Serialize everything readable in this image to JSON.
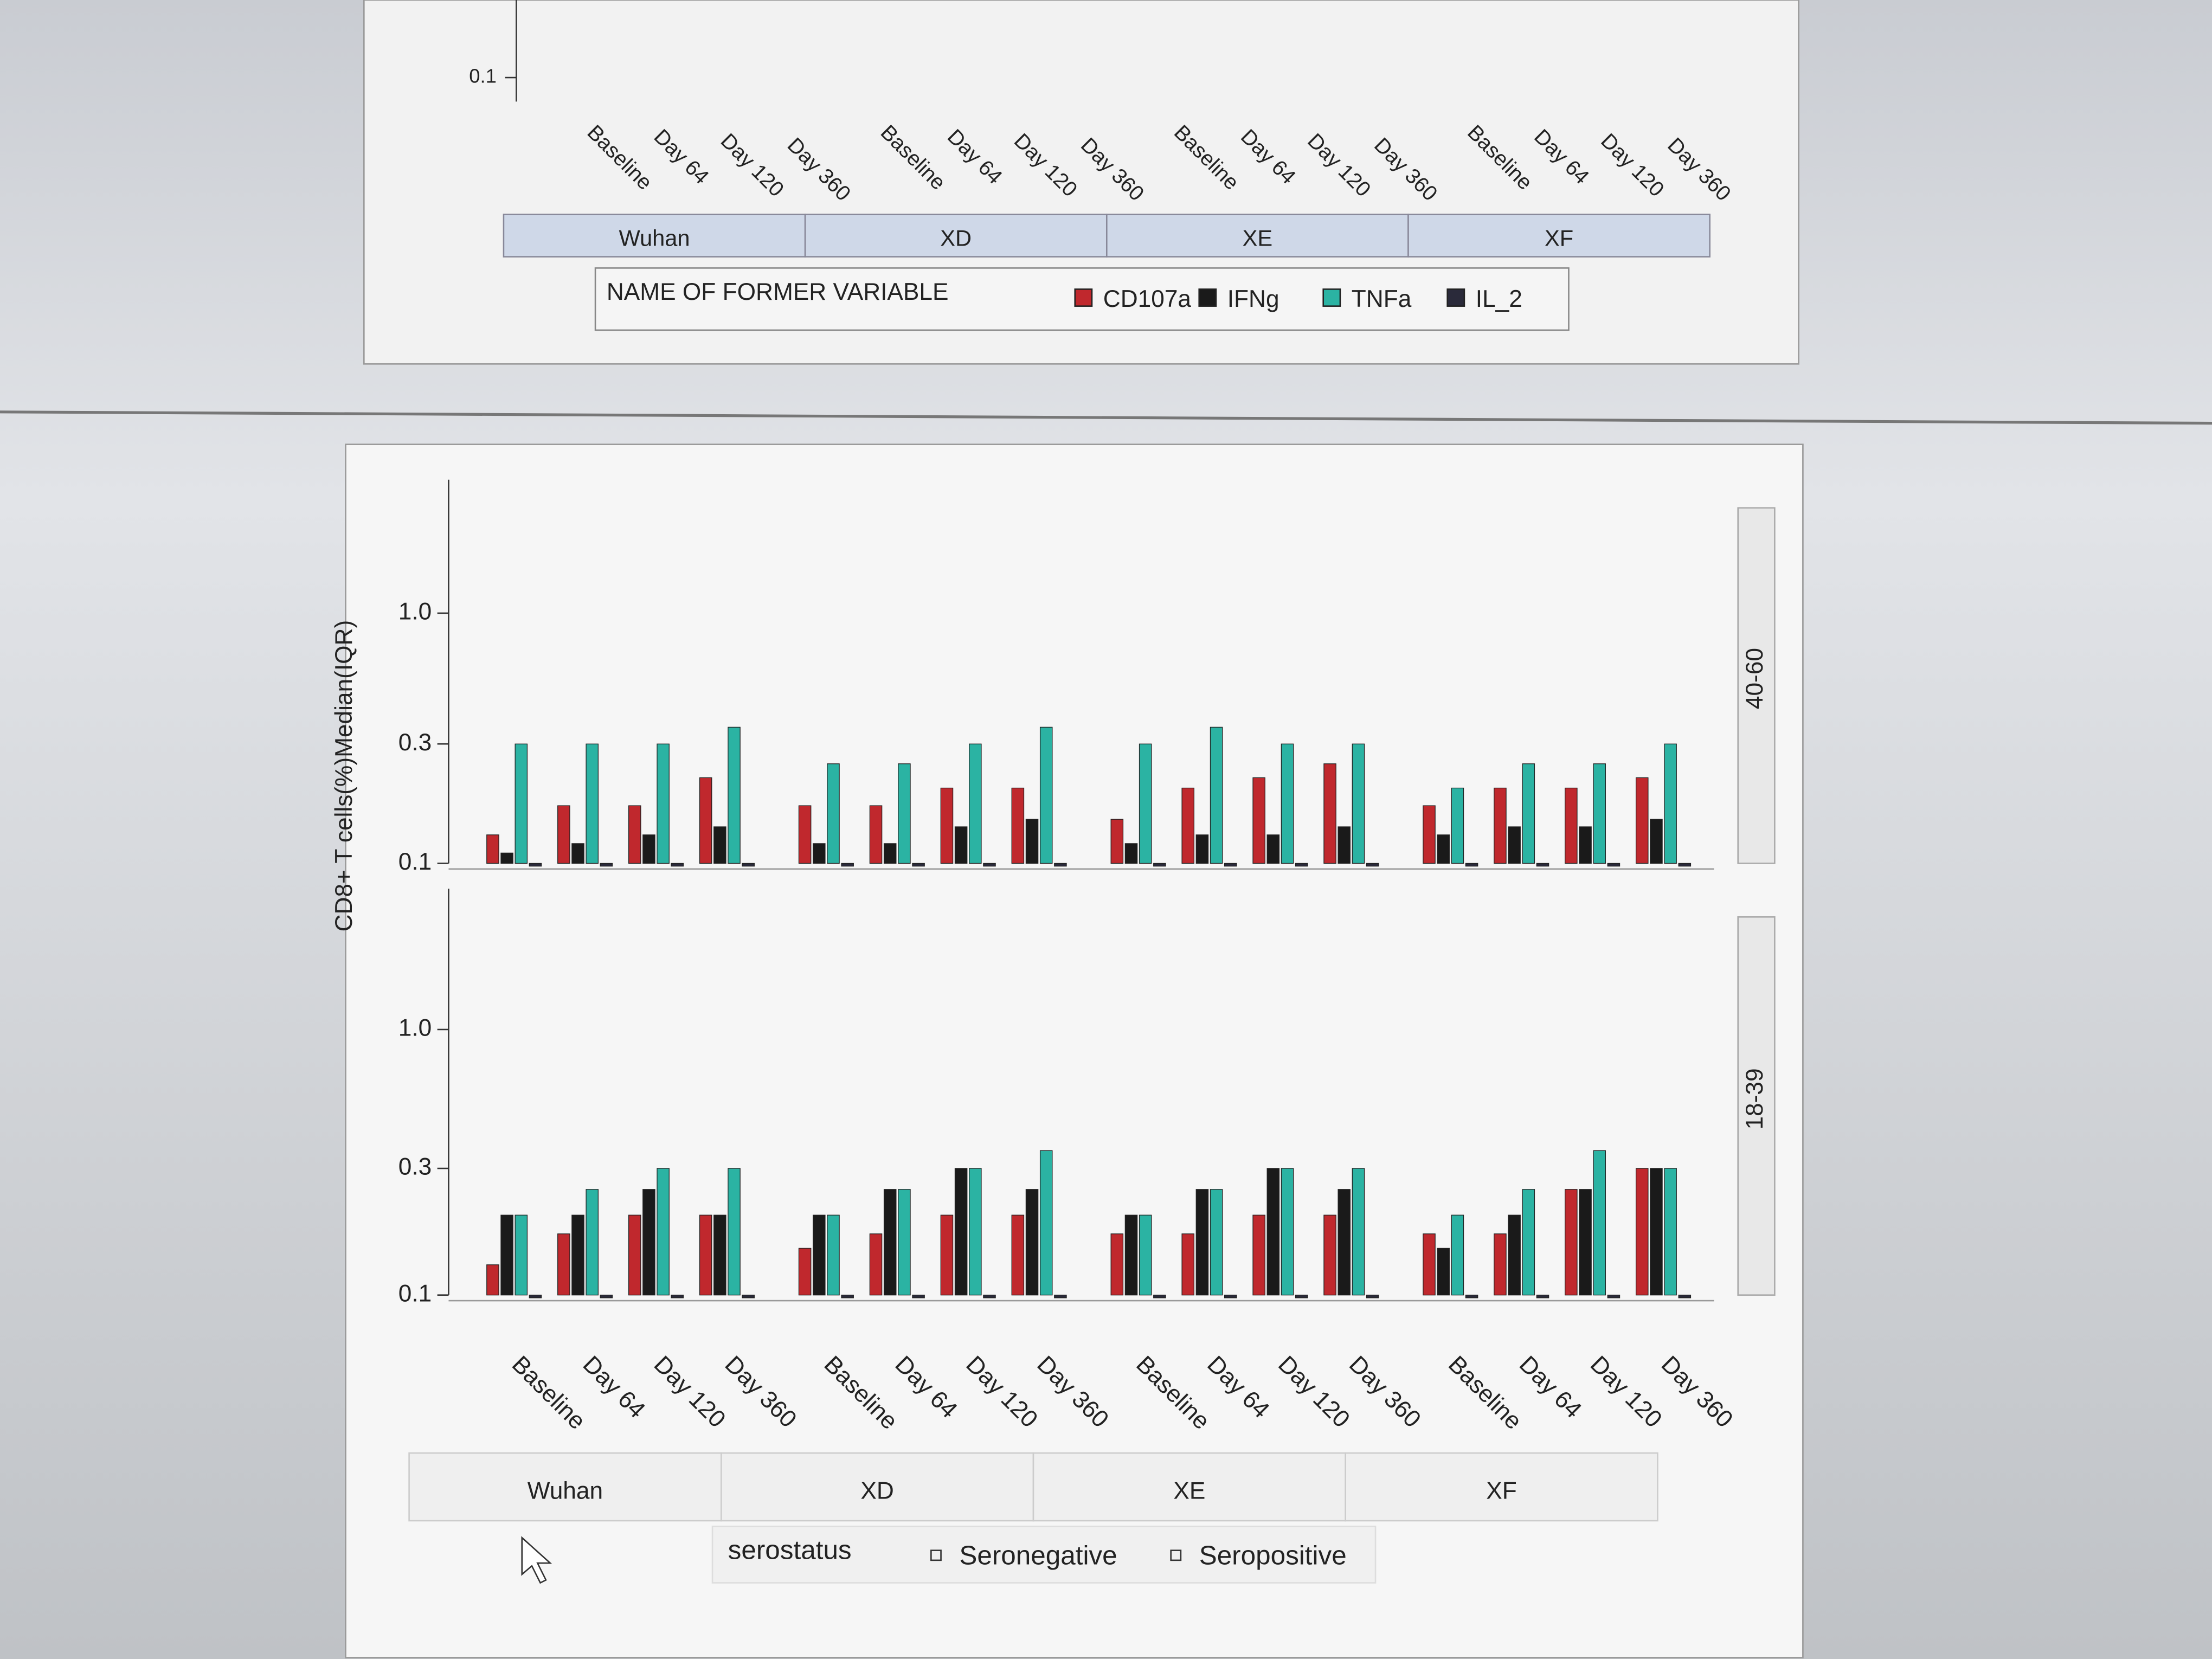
{
  "chart_data": {
    "type": "box",
    "y_label": "CD8+ T cells(%)Median(IQR)",
    "log_y": true,
    "ylim": [
      0.1,
      3
    ],
    "yticks": [
      {
        "value": 1,
        "label": "1.0"
      },
      0.3,
      0.1
    ],
    "categories": [
      "Baseline",
      "Day 64",
      "Day 120",
      "Day 360"
    ],
    "groups": [
      "Wuhan",
      "XD",
      "XE",
      "XF"
    ],
    "legend_title": "NAME OF FORMER VARIABLE",
    "variables": [
      {
        "name": "CD107a",
        "color": "#c0282d"
      },
      {
        "name": "IFNg",
        "color": "#1a1a1a"
      },
      {
        "name": "TNFa",
        "color": "#2bb3a3"
      },
      {
        "name": "IL_2",
        "color": "#2a2a3a"
      }
    ],
    "rows": [
      {
        "label": "40-60",
        "values": [
          [
            0.13,
            0.17,
            0.17,
            0.22,
            0.17,
            0.17,
            0.2,
            0.2,
            0.15,
            0.2,
            0.22,
            0.25,
            0.17,
            0.2,
            0.2,
            0.22
          ],
          [
            0.11,
            0.12,
            0.13,
            0.14,
            0.12,
            0.12,
            0.14,
            0.15,
            0.12,
            0.13,
            0.13,
            0.14,
            0.13,
            0.14,
            0.14,
            0.15
          ],
          [
            0.3,
            0.3,
            0.3,
            0.35,
            0.25,
            0.25,
            0.3,
            0.35,
            0.3,
            0.35,
            0.3,
            0.3,
            0.2,
            0.25,
            0.25,
            0.3
          ],
          [
            0.1,
            0.1,
            0.1,
            0.1,
            0.1,
            0.1,
            0.1,
            0.1,
            0.1,
            0.1,
            0.1,
            0.1,
            0.1,
            0.1,
            0.1,
            0.1
          ]
        ]
      },
      {
        "label": "18-39",
        "values": [
          [
            0.13,
            0.17,
            0.2,
            0.2,
            0.15,
            0.17,
            0.2,
            0.2,
            0.17,
            0.17,
            0.2,
            0.2,
            0.17,
            0.17,
            0.25,
            0.3
          ],
          [
            0.2,
            0.2,
            0.25,
            0.2,
            0.2,
            0.25,
            0.3,
            0.25,
            0.2,
            0.25,
            0.3,
            0.25,
            0.15,
            0.2,
            0.25,
            0.3
          ],
          [
            0.2,
            0.25,
            0.3,
            0.3,
            0.2,
            0.25,
            0.3,
            0.35,
            0.2,
            0.25,
            0.3,
            0.3,
            0.2,
            0.25,
            0.35,
            0.3
          ],
          [
            0.1,
            0.1,
            0.1,
            0.1,
            0.1,
            0.1,
            0.1,
            0.1,
            0.1,
            0.1,
            0.1,
            0.1,
            0.1,
            0.1,
            0.1,
            0.1
          ]
        ]
      }
    ],
    "top_panel_ytick": 0.1,
    "serostatus_title": "serostatus",
    "serostatus_items": [
      "Seronegative",
      "Seropositive"
    ]
  }
}
